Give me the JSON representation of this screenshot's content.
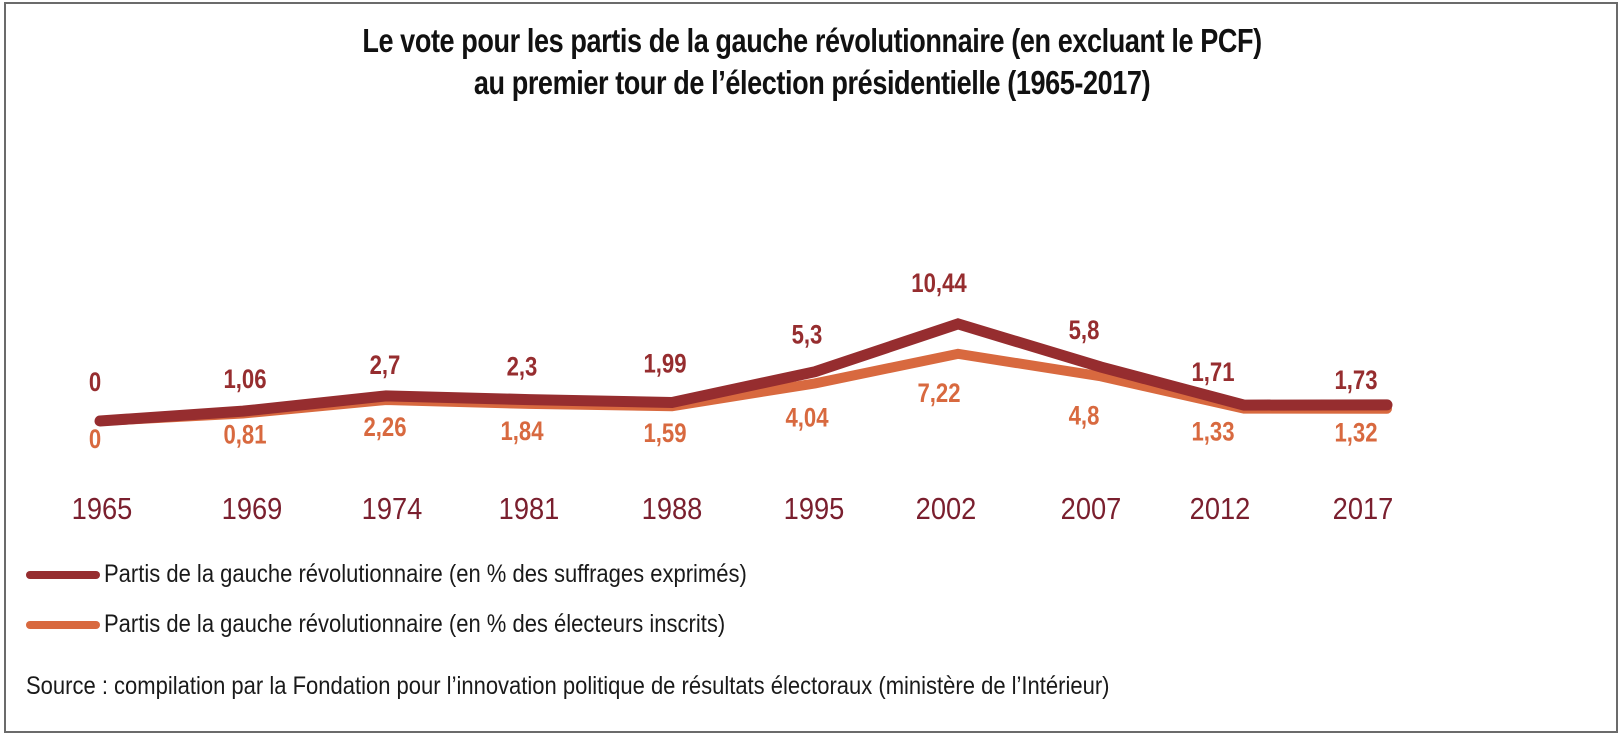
{
  "chart_data": {
    "type": "line",
    "title": "Le vote pour les partis de la gauche révolutionnaire (en excluant le PCF) au premier tour de l’élection présidentielle (1965-2017)",
    "title_lines": [
      "Le vote pour les partis de la gauche révolutionnaire (en excluant le PCF)",
      "au premier tour de l’élection présidentielle (1965-2017)"
    ],
    "xlabel": "",
    "ylabel": "",
    "categories": [
      "1965",
      "1969",
      "1974",
      "1981",
      "1988",
      "1995",
      "2002",
      "2007",
      "2012",
      "2017"
    ],
    "ylim": [
      0,
      11
    ],
    "grid": false,
    "legend_position": "bottom-left",
    "series": [
      {
        "name": "Partis de la gauche révolutionnaire (en % des suffrages exprimés)",
        "color": "#962d2f",
        "values": [
          0,
          1.06,
          2.7,
          2.3,
          1.99,
          5.3,
          10.44,
          5.8,
          1.71,
          1.73
        ],
        "labels": [
          "0",
          "1,06",
          "2,7",
          "2,3",
          "1,99",
          "5,3",
          "10,44",
          "5,8",
          "1,71",
          "1,73"
        ]
      },
      {
        "name": "Partis de la gauche révolutionnaire (en % des électeurs inscrits)",
        "color": "#d8693f",
        "values": [
          0,
          0.81,
          2.26,
          1.84,
          1.59,
          4.04,
          7.22,
          4.8,
          1.33,
          1.32
        ],
        "labels": [
          "0",
          "0,81",
          "2,26",
          "1,84",
          "1,59",
          "4,04",
          "7,22",
          "4,8",
          "1,33",
          "1,32"
        ]
      }
    ],
    "category_label_color": "#7a1f2e",
    "source": "Source : compilation par la Fondation pour l’innovation politique de résultats électoraux (ministère de l’Intérieur)"
  }
}
